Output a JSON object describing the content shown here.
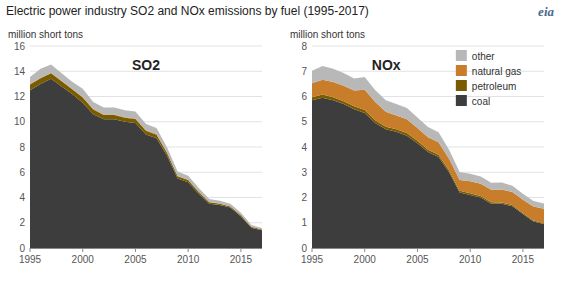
{
  "title": "Electric power industry SO2 and NOx emissions by fuel (1995-2017)",
  "annotations": [
    "eia"
  ],
  "chart_data": [
    {
      "type": "area",
      "stacked": true,
      "title": "SO2",
      "ylabel": "million short tons",
      "x": [
        1995,
        1996,
        1997,
        1998,
        1999,
        2000,
        2001,
        2002,
        2003,
        2004,
        2005,
        2006,
        2007,
        2008,
        2009,
        2010,
        2011,
        2012,
        2013,
        2014,
        2015,
        2016,
        2017
      ],
      "xlim": [
        1995,
        2017
      ],
      "xticks": [
        1995,
        2000,
        2005,
        2010,
        2015
      ],
      "ylim": [
        0,
        16
      ],
      "yticks": [
        0,
        2,
        4,
        6,
        8,
        10,
        12,
        14,
        16
      ],
      "grid": true,
      "series": [
        {
          "name": "coal",
          "color": "#3d3d3d",
          "values": [
            12.5,
            13.0,
            13.4,
            12.8,
            12.2,
            11.5,
            10.6,
            10.2,
            10.2,
            10.0,
            9.9,
            9.0,
            8.7,
            7.3,
            5.5,
            5.2,
            4.3,
            3.5,
            3.4,
            3.2,
            2.5,
            1.6,
            1.4
          ]
        },
        {
          "name": "petroleum",
          "color": "#7a5c00",
          "values": [
            0.45,
            0.45,
            0.45,
            0.4,
            0.38,
            0.42,
            0.38,
            0.33,
            0.33,
            0.32,
            0.32,
            0.28,
            0.28,
            0.23,
            0.18,
            0.18,
            0.14,
            0.13,
            0.11,
            0.09,
            0.09,
            0.07,
            0.06
          ]
        },
        {
          "name": "natural gas",
          "color": "#c87d2a",
          "values": [
            0.04,
            0.04,
            0.04,
            0.04,
            0.04,
            0.04,
            0.04,
            0.04,
            0.04,
            0.04,
            0.04,
            0.04,
            0.04,
            0.03,
            0.03,
            0.03,
            0.03,
            0.02,
            0.02,
            0.02,
            0.02,
            0.02,
            0.01
          ]
        },
        {
          "name": "other",
          "color": "#b8b8b8",
          "values": [
            0.55,
            0.7,
            0.65,
            0.6,
            0.55,
            0.65,
            0.55,
            0.55,
            0.55,
            0.55,
            0.55,
            0.5,
            0.48,
            0.4,
            0.35,
            0.32,
            0.28,
            0.24,
            0.22,
            0.2,
            0.18,
            0.14,
            0.12
          ]
        }
      ]
    },
    {
      "type": "area",
      "stacked": true,
      "title": "NOx",
      "ylabel": "million short tons",
      "legend": "upper right",
      "x": [
        1995,
        1996,
        1997,
        1998,
        1999,
        2000,
        2001,
        2002,
        2003,
        2004,
        2005,
        2006,
        2007,
        2008,
        2009,
        2010,
        2011,
        2012,
        2013,
        2014,
        2015,
        2016,
        2017
      ],
      "xlim": [
        1995,
        2017
      ],
      "xticks": [
        1995,
        2000,
        2005,
        2010,
        2015
      ],
      "ylim": [
        0,
        8
      ],
      "yticks": [
        0,
        1,
        2,
        3,
        4,
        5,
        6,
        7,
        8
      ],
      "grid": true,
      "series": [
        {
          "name": "coal",
          "color": "#3d3d3d",
          "values": [
            5.85,
            5.95,
            5.85,
            5.7,
            5.5,
            5.35,
            4.95,
            4.7,
            4.6,
            4.45,
            4.15,
            3.8,
            3.6,
            3.0,
            2.2,
            2.1,
            2.0,
            1.75,
            1.75,
            1.65,
            1.35,
            1.05,
            0.95
          ]
        },
        {
          "name": "petroleum",
          "color": "#7a5c00",
          "values": [
            0.12,
            0.13,
            0.12,
            0.11,
            0.11,
            0.12,
            0.11,
            0.1,
            0.1,
            0.1,
            0.1,
            0.09,
            0.09,
            0.08,
            0.07,
            0.07,
            0.06,
            0.06,
            0.05,
            0.05,
            0.04,
            0.04,
            0.03
          ]
        },
        {
          "name": "natural gas",
          "color": "#c87d2a",
          "values": [
            0.55,
            0.58,
            0.6,
            0.62,
            0.63,
            0.8,
            0.72,
            0.6,
            0.55,
            0.55,
            0.5,
            0.5,
            0.5,
            0.45,
            0.42,
            0.47,
            0.48,
            0.5,
            0.52,
            0.52,
            0.52,
            0.55,
            0.57
          ]
        },
        {
          "name": "other",
          "color": "#b8b8b8",
          "values": [
            0.5,
            0.55,
            0.53,
            0.5,
            0.47,
            0.5,
            0.47,
            0.45,
            0.45,
            0.44,
            0.42,
            0.4,
            0.39,
            0.36,
            0.32,
            0.3,
            0.29,
            0.27,
            0.27,
            0.25,
            0.24,
            0.22,
            0.21
          ]
        }
      ]
    }
  ]
}
